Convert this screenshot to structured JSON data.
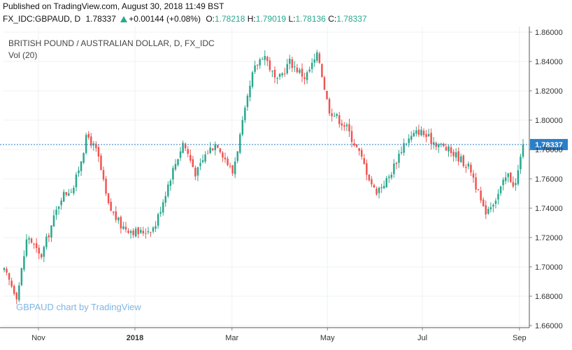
{
  "header": {
    "published": "Published on TradingView.com, August 30, 2018 11:49 BST",
    "symbol_line": "FX_IDC:GBPAUD, D",
    "last_price": "1.78337",
    "change": "+0.00144 (+0.08%)",
    "o_label": "O:",
    "o_value": "1.78218",
    "h_label": "H:",
    "h_value": "1.79019",
    "l_label": "L:",
    "l_value": "1.78136",
    "c_label": "C:",
    "c_value": "1.78337"
  },
  "legend": {
    "title": "BRITISH POUND / AUSTRALIAN DOLLAR, D, FX_IDC",
    "volume": "Vol (20)"
  },
  "watermark": "GBPAUD chart by TradingView",
  "colors": {
    "up": "#2aa78d",
    "down": "#ef5350",
    "price_tag": "#2a7fc9",
    "grid": "#eef1f4"
  },
  "chart_data": {
    "type": "candlestick",
    "title": "BRITISH POUND / AUSTRALIAN DOLLAR, D, FX_IDC",
    "x_ticks": [
      {
        "label": "Nov",
        "bold": false,
        "t": 0.066
      },
      {
        "label": "2018",
        "bold": true,
        "t": 0.252
      },
      {
        "label": "Mar",
        "bold": false,
        "t": 0.439
      },
      {
        "label": "May",
        "bold": false,
        "t": 0.623
      },
      {
        "label": "Jul",
        "bold": false,
        "t": 0.806
      },
      {
        "label": "Sep",
        "bold": false,
        "t": 0.993
      }
    ],
    "y_ticks": [
      "1.86000",
      "1.84000",
      "1.82000",
      "1.80000",
      "1.78000",
      "1.76000",
      "1.74000",
      "1.72000",
      "1.70000",
      "1.68000",
      "1.66000"
    ],
    "ylim": [
      1.66,
      1.86
    ],
    "last_value": 1.78337,
    "last_label": "1.78337",
    "anchors": [
      [
        0,
        1.697
      ],
      [
        0.025,
        1.68
      ],
      [
        0.045,
        1.722
      ],
      [
        0.07,
        1.706
      ],
      [
        0.11,
        1.748
      ],
      [
        0.135,
        1.755
      ],
      [
        0.16,
        1.79
      ],
      [
        0.18,
        1.777
      ],
      [
        0.2,
        1.742
      ],
      [
        0.225,
        1.728
      ],
      [
        0.26,
        1.723
      ],
      [
        0.29,
        1.727
      ],
      [
        0.32,
        1.761
      ],
      [
        0.345,
        1.785
      ],
      [
        0.37,
        1.763
      ],
      [
        0.39,
        1.778
      ],
      [
        0.41,
        1.785
      ],
      [
        0.44,
        1.764
      ],
      [
        0.48,
        1.833
      ],
      [
        0.5,
        1.846
      ],
      [
        0.525,
        1.825
      ],
      [
        0.55,
        1.84
      ],
      [
        0.58,
        1.829
      ],
      [
        0.605,
        1.845
      ],
      [
        0.625,
        1.808
      ],
      [
        0.66,
        1.795
      ],
      [
        0.685,
        1.777
      ],
      [
        0.715,
        1.751
      ],
      [
        0.74,
        1.76
      ],
      [
        0.77,
        1.784
      ],
      [
        0.8,
        1.793
      ],
      [
        0.82,
        1.787
      ],
      [
        0.845,
        1.782
      ],
      [
        0.875,
        1.775
      ],
      [
        0.9,
        1.766
      ],
      [
        0.925,
        1.737
      ],
      [
        0.95,
        1.748
      ],
      [
        0.97,
        1.763
      ],
      [
        0.985,
        1.755
      ],
      [
        1.0,
        1.783
      ]
    ],
    "candle_count": 210
  }
}
